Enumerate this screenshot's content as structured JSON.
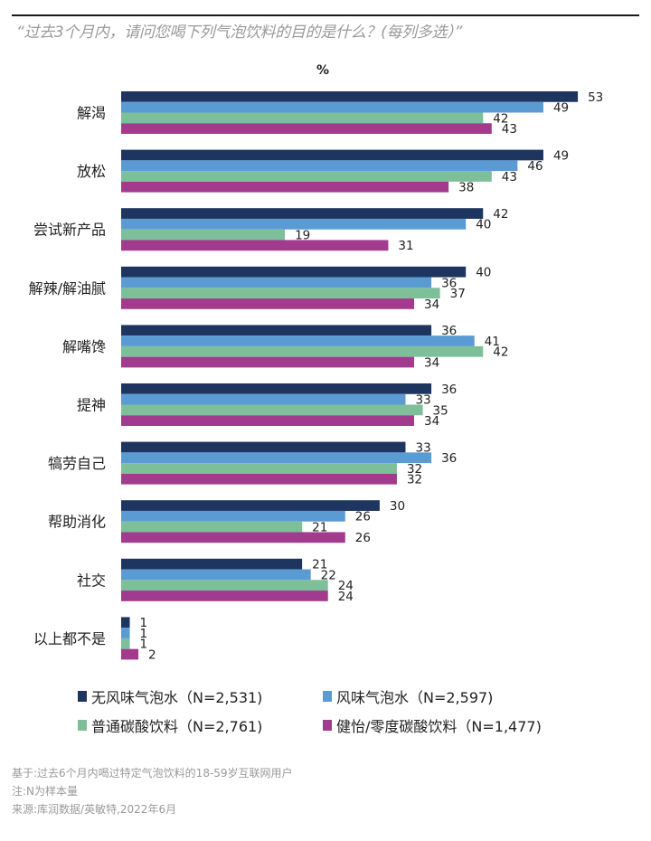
{
  "header": {
    "title": "“过去3个月内，请问您喝下列气泡饮料的目的是什么？(每列多选）”",
    "unit": "%"
  },
  "chart_data": {
    "type": "bar",
    "orientation": "horizontal",
    "title": "“过去3个月内，请问您喝下列气泡饮料的目的是什么？(每列多选）”",
    "xlabel": "%",
    "ylabel": "",
    "xlim": [
      0,
      55
    ],
    "grid": false,
    "legend_position": "bottom",
    "categories": [
      "解渴",
      "放松",
      "尝试新产品",
      "解辣/解油腻",
      "解嘴馋",
      "提神",
      "犒劳自己",
      "帮助消化",
      "社交",
      "以上都不是"
    ],
    "series": [
      {
        "name": "无风味气泡水（N=2,531)",
        "color": "#1e3560",
        "values": [
          53,
          49,
          42,
          40,
          36,
          36,
          33,
          30,
          21,
          1
        ]
      },
      {
        "name": "风味气泡水（N=2,597)",
        "color": "#5b9bd3",
        "values": [
          49,
          46,
          40,
          36,
          41,
          33,
          36,
          26,
          22,
          1
        ]
      },
      {
        "name": "普通碳酸饮料（N=2,761)",
        "color": "#7dbf98",
        "values": [
          42,
          43,
          19,
          37,
          42,
          35,
          32,
          21,
          24,
          1
        ]
      },
      {
        "name": "健怡/零度碳酸饮料（N=1,477)",
        "color": "#a23a8e",
        "values": [
          43,
          38,
          31,
          34,
          34,
          34,
          32,
          26,
          24,
          2
        ]
      }
    ]
  },
  "notes": [
    "基于:过去6个月内喝过特定气泡饮料的18-59岁互联网用户",
    "注:N为样本量",
    "来源:库润数据/英敏特,2022年6月"
  ]
}
